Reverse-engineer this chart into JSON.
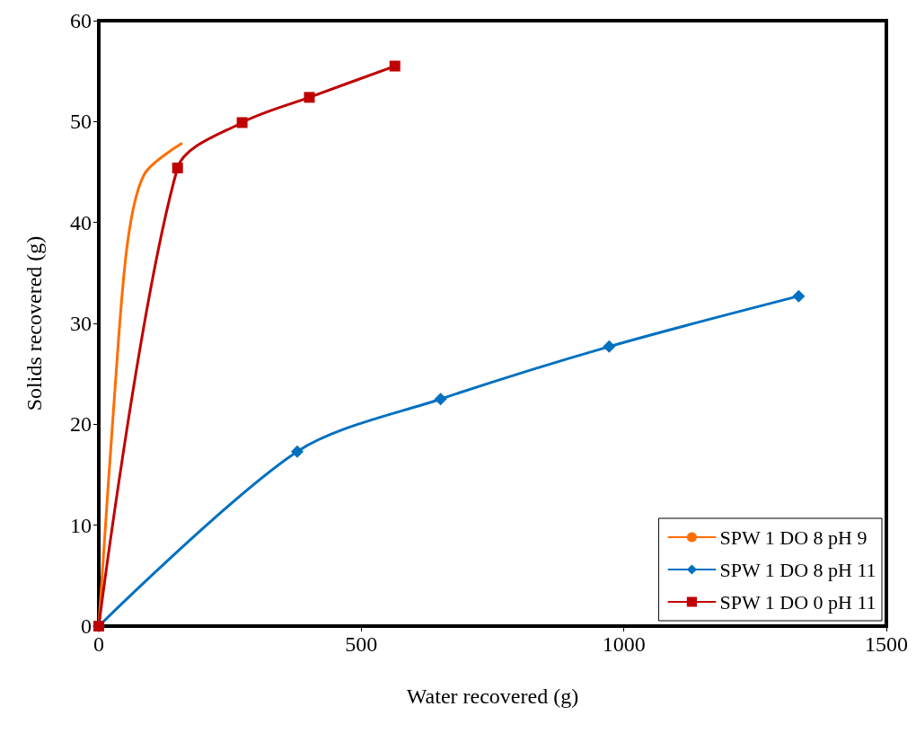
{
  "chart_data": {
    "type": "line",
    "xlabel": "Water recovered (g)",
    "ylabel": "Solids recovered (g)",
    "xlim": [
      0,
      1500
    ],
    "xticks": [
      0,
      500,
      1000,
      1500
    ],
    "ylim": [
      0,
      60
    ],
    "yticks": [
      0,
      10,
      20,
      30,
      40,
      50,
      60
    ],
    "grid": false,
    "legend": "bottom right",
    "line_style": "solid",
    "series": [
      {
        "name": "SPW 1 DO 8 pH 9",
        "color": "#ff6d00",
        "marker": "none",
        "x": [
          0,
          31,
          55,
          87,
          157
        ],
        "values": [
          0,
          23.6,
          38.1,
          44.8,
          47.8
        ]
      },
      {
        "name": "SPW 1 DO 8 pH 11",
        "color": "#0070c0",
        "marker": "diamond",
        "x": [
          0,
          378,
          651,
          972,
          1333
        ],
        "values": [
          0,
          17.3,
          22.5,
          27.7,
          32.7
        ]
      },
      {
        "name": "SPW 1 DO 0 pH 11",
        "color": "#c00000",
        "marker": "square",
        "x": [
          0,
          150,
          273,
          401,
          564
        ],
        "values": [
          0,
          45.4,
          49.9,
          52.4,
          55.5
        ]
      }
    ]
  }
}
